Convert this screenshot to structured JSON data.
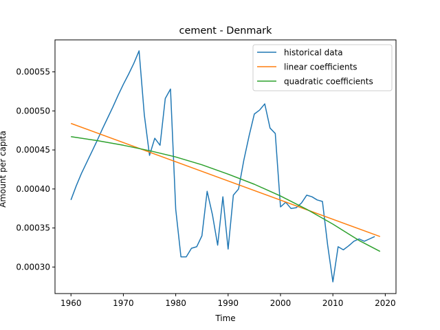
{
  "chart_data": {
    "type": "line",
    "title": "cement - Denmark",
    "xlabel": "Time",
    "ylabel": "Amount per capita",
    "xlim": [
      1956.95,
      2022.05
    ],
    "ylim": [
      0.000266,
      0.000591
    ],
    "xticks": [
      1960,
      1970,
      1980,
      1990,
      2000,
      2010,
      2020
    ],
    "xtick_labels": [
      "1960",
      "1970",
      "1980",
      "1990",
      "2000",
      "2010",
      "2020"
    ],
    "yticks": [
      0.0003,
      0.00035,
      0.0004,
      0.00045,
      0.0005,
      0.00055
    ],
    "ytick_labels": [
      "0.00030",
      "0.00035",
      "0.00040",
      "0.00045",
      "0.00050",
      "0.00055"
    ],
    "grid": false,
    "legend_position": "top-right",
    "series": [
      {
        "name": "historical data",
        "color": "#1f77b4",
        "x": [
          1960,
          1961,
          1962,
          1963,
          1964,
          1965,
          1966,
          1967,
          1968,
          1969,
          1970,
          1971,
          1972,
          1973,
          1974,
          1975,
          1976,
          1977,
          1978,
          1979,
          1980,
          1981,
          1982,
          1983,
          1984,
          1985,
          1986,
          1987,
          1988,
          1989,
          1990,
          1991,
          1992,
          1993,
          1994,
          1995,
          1996,
          1997,
          1998,
          1999,
          2000,
          2001,
          2002,
          2003,
          2004,
          2005,
          2006,
          2007,
          2008,
          2009,
          2010,
          2011,
          2012,
          2013,
          2014,
          2015,
          2016,
          2017,
          2018
        ],
        "y": [
          0.000386,
          0.000404,
          0.00042,
          0.000434,
          0.000448,
          0.000462,
          0.000477,
          0.000491,
          0.000505,
          0.00052,
          0.000534,
          0.000547,
          0.000561,
          0.000577,
          0.000495,
          0.000443,
          0.000465,
          0.000456,
          0.000516,
          0.000528,
          0.000374,
          0.000313,
          0.000313,
          0.000324,
          0.000326,
          0.00034,
          0.000397,
          0.000367,
          0.000328,
          0.00039,
          0.000323,
          0.000392,
          0.0004,
          0.000437,
          0.000468,
          0.000496,
          0.000501,
          0.000509,
          0.000478,
          0.000471,
          0.000377,
          0.000383,
          0.000375,
          0.000376,
          0.000382,
          0.000392,
          0.00039,
          0.000386,
          0.000384,
          0.000328,
          0.000281,
          0.000326,
          0.000322,
          0.000327,
          0.000333,
          0.000336,
          0.000333,
          0.000336,
          0.000339
        ]
      },
      {
        "name": "linear coefficients",
        "color": "#ff7f0e",
        "x": [
          1960,
          2019
        ],
        "y": [
          0.000484,
          0.000339
        ]
      },
      {
        "name": "quadratic coefficients",
        "color": "#2ca02c",
        "x": [
          1960,
          1965,
          1970,
          1975,
          1980,
          1985,
          1990,
          1995,
          2000,
          2005,
          2010,
          2015,
          2019
        ],
        "y": [
          0.000467,
          0.000462,
          0.000456,
          0.000449,
          0.000441,
          0.000431,
          0.000419,
          0.000406,
          0.000391,
          0.000374,
          0.000355,
          0.000334,
          0.00032
        ]
      }
    ]
  }
}
